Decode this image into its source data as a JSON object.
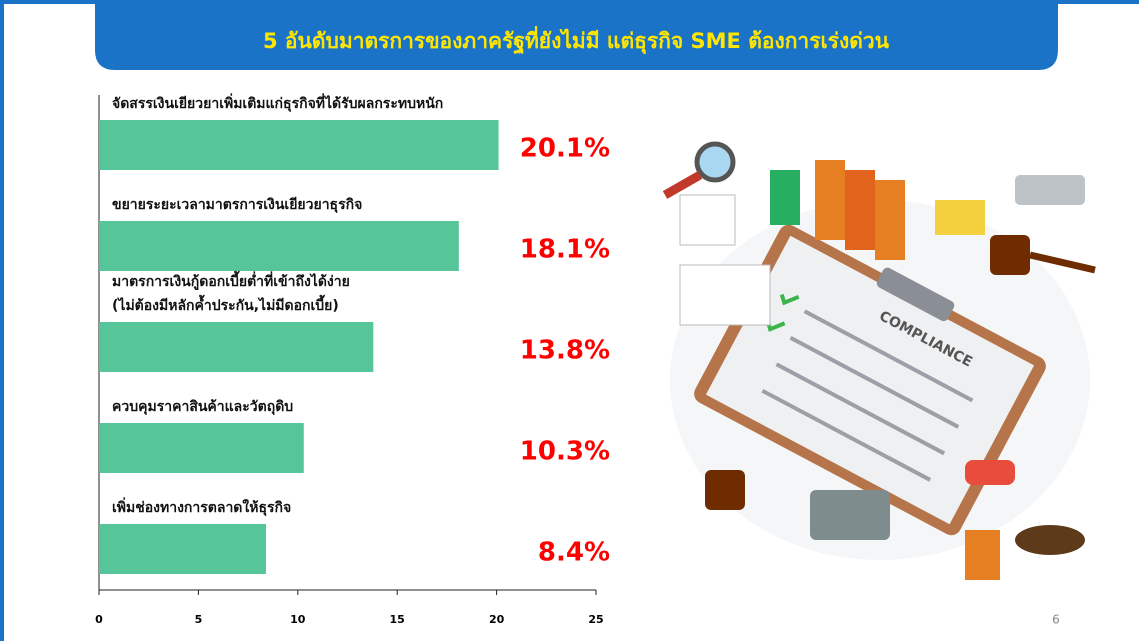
{
  "chart_data": {
    "type": "bar",
    "orientation": "horizontal",
    "title": "5 อันดับมาตรการของภาครัฐที่ยังไม่มี แต่ธุรกิจ SME ต้องการเร่งด่วน",
    "categories": [
      "จัดสรรเงินเยียวยาเพิ่มเติมแก่ธุรกิจที่ได้รับผลกระทบหนัก",
      "ขยายระยะเวลามาตรการเงินเยียวยาธุรกิจ",
      "มาตรการเงินกู้ดอกเบี้ยต่ำที่เข้าถึงได้ง่าย\n(ไม่ต้องมีหลักค้ำประกัน,ไม่มีดอกเบี้ย)",
      "ควบคุมราคาสินค้าและวัตถุดิบ",
      "เพิ่มช่องทางการตลาดให้ธุรกิจ"
    ],
    "values": [
      20.1,
      18.1,
      13.8,
      10.3,
      8.4
    ],
    "value_labels": [
      "20.1%",
      "18.1%",
      "13.8%",
      "10.3%",
      "8.4%"
    ],
    "color": "#57c59a",
    "value_label_color": "#ff0000",
    "xlim": [
      0,
      25
    ],
    "xticks": [
      0,
      5,
      10,
      15,
      20,
      25
    ],
    "grid": false
  },
  "illustration": {
    "label": "COMPLIANCE"
  },
  "page_number": "6"
}
